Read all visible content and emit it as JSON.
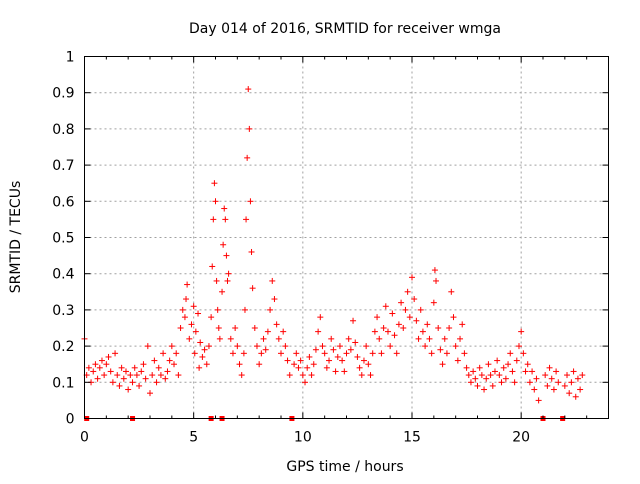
{
  "chart_data": {
    "type": "scatter",
    "title": "Day 014 of 2016, SRMTID for receiver wmga",
    "xlabel": "GPS time / hours",
    "ylabel": "SRMTID / TECUs",
    "xlim": [
      0,
      24
    ],
    "ylim": [
      0,
      1
    ],
    "xticks": [
      "0",
      "5",
      "10",
      "15",
      "20"
    ],
    "yticks": [
      "0",
      "0.1",
      "0.2",
      "0.3",
      "0.4",
      "0.5",
      "0.6",
      "0.7",
      "0.8",
      "0.9",
      "1"
    ],
    "grid": true,
    "marker": "+",
    "color": "#ff0000",
    "zero_markers_x": [
      0.1,
      2.2,
      5.8,
      6.3,
      9.5,
      21.0,
      21.9
    ],
    "series": [
      {
        "name": "SRMTID",
        "points": [
          [
            0.0,
            0.22
          ],
          [
            0.1,
            0.12
          ],
          [
            0.2,
            0.14
          ],
          [
            0.3,
            0.1
          ],
          [
            0.4,
            0.13
          ],
          [
            0.5,
            0.15
          ],
          [
            0.6,
            0.11
          ],
          [
            0.7,
            0.14
          ],
          [
            0.8,
            0.16
          ],
          [
            0.9,
            0.12
          ],
          [
            1.0,
            0.15
          ],
          [
            1.1,
            0.17
          ],
          [
            1.2,
            0.13
          ],
          [
            1.3,
            0.1
          ],
          [
            1.4,
            0.18
          ],
          [
            1.5,
            0.12
          ],
          [
            1.6,
            0.09
          ],
          [
            1.7,
            0.14
          ],
          [
            1.8,
            0.11
          ],
          [
            1.9,
            0.13
          ],
          [
            2.0,
            0.08
          ],
          [
            2.1,
            0.12
          ],
          [
            2.2,
            0.1
          ],
          [
            2.3,
            0.14
          ],
          [
            2.4,
            0.12
          ],
          [
            2.5,
            0.09
          ],
          [
            2.6,
            0.13
          ],
          [
            2.7,
            0.15
          ],
          [
            2.8,
            0.11
          ],
          [
            2.9,
            0.2
          ],
          [
            3.0,
            0.07
          ],
          [
            3.1,
            0.12
          ],
          [
            3.2,
            0.16
          ],
          [
            3.3,
            0.1
          ],
          [
            3.4,
            0.14
          ],
          [
            3.5,
            0.12
          ],
          [
            3.6,
            0.18
          ],
          [
            3.7,
            0.11
          ],
          [
            3.8,
            0.13
          ],
          [
            3.9,
            0.16
          ],
          [
            4.0,
            0.2
          ],
          [
            4.1,
            0.15
          ],
          [
            4.2,
            0.18
          ],
          [
            4.3,
            0.12
          ],
          [
            4.4,
            0.25
          ],
          [
            4.5,
            0.3
          ],
          [
            4.6,
            0.28
          ],
          [
            4.65,
            0.33
          ],
          [
            4.7,
            0.37
          ],
          [
            4.8,
            0.22
          ],
          [
            4.9,
            0.26
          ],
          [
            5.0,
            0.31
          ],
          [
            5.05,
            0.18
          ],
          [
            5.1,
            0.24
          ],
          [
            5.2,
            0.29
          ],
          [
            5.25,
            0.14
          ],
          [
            5.3,
            0.21
          ],
          [
            5.4,
            0.17
          ],
          [
            5.5,
            0.19
          ],
          [
            5.6,
            0.15
          ],
          [
            5.7,
            0.2
          ],
          [
            5.8,
            0.28
          ],
          [
            5.85,
            0.42
          ],
          [
            5.9,
            0.55
          ],
          [
            5.95,
            0.65
          ],
          [
            6.0,
            0.6
          ],
          [
            6.05,
            0.38
          ],
          [
            6.1,
            0.3
          ],
          [
            6.15,
            0.25
          ],
          [
            6.2,
            0.22
          ],
          [
            6.3,
            0.35
          ],
          [
            6.35,
            0.48
          ],
          [
            6.4,
            0.58
          ],
          [
            6.45,
            0.55
          ],
          [
            6.5,
            0.45
          ],
          [
            6.55,
            0.38
          ],
          [
            6.6,
            0.4
          ],
          [
            6.7,
            0.22
          ],
          [
            6.8,
            0.18
          ],
          [
            6.9,
            0.25
          ],
          [
            7.0,
            0.2
          ],
          [
            7.1,
            0.15
          ],
          [
            7.2,
            0.12
          ],
          [
            7.3,
            0.18
          ],
          [
            7.35,
            0.3
          ],
          [
            7.4,
            0.55
          ],
          [
            7.45,
            0.72
          ],
          [
            7.5,
            0.91
          ],
          [
            7.55,
            0.8
          ],
          [
            7.6,
            0.6
          ],
          [
            7.65,
            0.46
          ],
          [
            7.7,
            0.36
          ],
          [
            7.8,
            0.25
          ],
          [
            7.9,
            0.2
          ],
          [
            8.0,
            0.15
          ],
          [
            8.1,
            0.18
          ],
          [
            8.2,
            0.22
          ],
          [
            8.3,
            0.19
          ],
          [
            8.4,
            0.24
          ],
          [
            8.5,
            0.3
          ],
          [
            8.6,
            0.38
          ],
          [
            8.7,
            0.33
          ],
          [
            8.8,
            0.26
          ],
          [
            8.9,
            0.22
          ],
          [
            9.0,
            0.18
          ],
          [
            9.1,
            0.24
          ],
          [
            9.2,
            0.2
          ],
          [
            9.3,
            0.16
          ],
          [
            9.4,
            0.12
          ],
          [
            9.6,
            0.15
          ],
          [
            9.7,
            0.18
          ],
          [
            9.8,
            0.14
          ],
          [
            9.9,
            0.16
          ],
          [
            10.0,
            0.12
          ],
          [
            10.1,
            0.1
          ],
          [
            10.2,
            0.14
          ],
          [
            10.3,
            0.17
          ],
          [
            10.4,
            0.12
          ],
          [
            10.5,
            0.15
          ],
          [
            10.6,
            0.19
          ],
          [
            10.7,
            0.24
          ],
          [
            10.8,
            0.28
          ],
          [
            10.9,
            0.2
          ],
          [
            11.0,
            0.18
          ],
          [
            11.1,
            0.14
          ],
          [
            11.2,
            0.16
          ],
          [
            11.3,
            0.22
          ],
          [
            11.4,
            0.19
          ],
          [
            11.5,
            0.13
          ],
          [
            11.6,
            0.17
          ],
          [
            11.7,
            0.2
          ],
          [
            11.8,
            0.16
          ],
          [
            11.9,
            0.13
          ],
          [
            12.0,
            0.18
          ],
          [
            12.1,
            0.22
          ],
          [
            12.2,
            0.19
          ],
          [
            12.3,
            0.27
          ],
          [
            12.4,
            0.21
          ],
          [
            12.5,
            0.17
          ],
          [
            12.6,
            0.14
          ],
          [
            12.7,
            0.12
          ],
          [
            12.8,
            0.16
          ],
          [
            12.9,
            0.2
          ],
          [
            13.0,
            0.15
          ],
          [
            13.1,
            0.12
          ],
          [
            13.2,
            0.18
          ],
          [
            13.3,
            0.24
          ],
          [
            13.4,
            0.28
          ],
          [
            13.5,
            0.22
          ],
          [
            13.6,
            0.18
          ],
          [
            13.7,
            0.25
          ],
          [
            13.8,
            0.31
          ],
          [
            13.9,
            0.24
          ],
          [
            14.0,
            0.2
          ],
          [
            14.1,
            0.29
          ],
          [
            14.2,
            0.23
          ],
          [
            14.3,
            0.18
          ],
          [
            14.4,
            0.26
          ],
          [
            14.5,
            0.32
          ],
          [
            14.6,
            0.25
          ],
          [
            14.7,
            0.3
          ],
          [
            14.8,
            0.35
          ],
          [
            14.9,
            0.28
          ],
          [
            15.0,
            0.39
          ],
          [
            15.1,
            0.33
          ],
          [
            15.2,
            0.27
          ],
          [
            15.3,
            0.22
          ],
          [
            15.4,
            0.3
          ],
          [
            15.5,
            0.24
          ],
          [
            15.6,
            0.2
          ],
          [
            15.7,
            0.26
          ],
          [
            15.8,
            0.22
          ],
          [
            15.9,
            0.18
          ],
          [
            16.0,
            0.32
          ],
          [
            16.05,
            0.41
          ],
          [
            16.1,
            0.38
          ],
          [
            16.2,
            0.25
          ],
          [
            16.3,
            0.19
          ],
          [
            16.4,
            0.15
          ],
          [
            16.5,
            0.22
          ],
          [
            16.6,
            0.18
          ],
          [
            16.7,
            0.25
          ],
          [
            16.8,
            0.35
          ],
          [
            16.9,
            0.28
          ],
          [
            17.0,
            0.2
          ],
          [
            17.1,
            0.16
          ],
          [
            17.2,
            0.22
          ],
          [
            17.3,
            0.26
          ],
          [
            17.4,
            0.18
          ],
          [
            17.5,
            0.14
          ],
          [
            17.6,
            0.12
          ],
          [
            17.7,
            0.1
          ],
          [
            17.8,
            0.13
          ],
          [
            17.9,
            0.11
          ],
          [
            18.0,
            0.09
          ],
          [
            18.1,
            0.14
          ],
          [
            18.2,
            0.12
          ],
          [
            18.3,
            0.08
          ],
          [
            18.4,
            0.11
          ],
          [
            18.5,
            0.15
          ],
          [
            18.6,
            0.12
          ],
          [
            18.7,
            0.09
          ],
          [
            18.8,
            0.13
          ],
          [
            18.9,
            0.16
          ],
          [
            19.0,
            0.12
          ],
          [
            19.1,
            0.1
          ],
          [
            19.2,
            0.14
          ],
          [
            19.3,
            0.11
          ],
          [
            19.4,
            0.15
          ],
          [
            19.5,
            0.18
          ],
          [
            19.6,
            0.13
          ],
          [
            19.7,
            0.1
          ],
          [
            19.8,
            0.16
          ],
          [
            19.9,
            0.2
          ],
          [
            20.0,
            0.24
          ],
          [
            20.1,
            0.18
          ],
          [
            20.2,
            0.13
          ],
          [
            20.3,
            0.15
          ],
          [
            20.4,
            0.1
          ],
          [
            20.5,
            0.13
          ],
          [
            20.6,
            0.08
          ],
          [
            20.7,
            0.11
          ],
          [
            20.8,
            0.05
          ],
          [
            21.1,
            0.12
          ],
          [
            21.2,
            0.09
          ],
          [
            21.3,
            0.14
          ],
          [
            21.4,
            0.11
          ],
          [
            21.5,
            0.08
          ],
          [
            21.6,
            0.13
          ],
          [
            21.7,
            0.1
          ],
          [
            22.0,
            0.09
          ],
          [
            22.1,
            0.12
          ],
          [
            22.2,
            0.07
          ],
          [
            22.3,
            0.1
          ],
          [
            22.4,
            0.13
          ],
          [
            22.5,
            0.06
          ],
          [
            22.6,
            0.11
          ],
          [
            22.7,
            0.08
          ],
          [
            22.8,
            0.12
          ]
        ]
      }
    ]
  }
}
